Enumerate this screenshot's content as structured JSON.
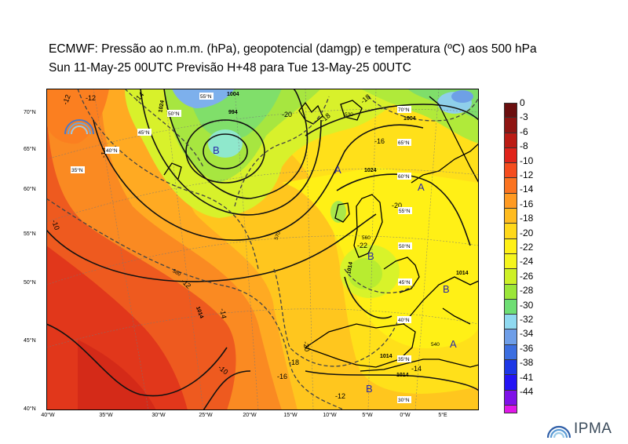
{
  "title_line1": "ECMWF:  Pressão ao n.m.m. (hPa), geopotencial (damgp) e temperatura (ºC) aos 500 hPa",
  "title_line2": "Sun 11-May-25 00UTC Previsão H+48 para Tue 13-May-25 00UTC",
  "lat_axis": [
    "70°N",
    "65°N",
    "60°N",
    "55°N",
    "50°N",
    "45°N",
    "40°N"
  ],
  "lon_axis": [
    "40°W",
    "35°W",
    "30°W",
    "25°W",
    "20°W",
    "15°W",
    "10°W",
    "5°W",
    "0°W",
    "5°E"
  ],
  "colorbar": {
    "labels": [
      "0",
      "-3",
      "-6",
      "-8",
      "-10",
      "-12",
      "-14",
      "-16",
      "-18",
      "-20",
      "-22",
      "-24",
      "-26",
      "-28",
      "-30",
      "-32",
      "-34",
      "-36",
      "-38",
      "-41",
      "-44"
    ],
    "colors": [
      "#6b0f0f",
      "#8f1512",
      "#bb1b14",
      "#e0231a",
      "#f54c1e",
      "#fb7320",
      "#ff9a22",
      "#ffbb1f",
      "#ffd81a",
      "#fff016",
      "#f5f51e",
      "#cdf027",
      "#9be639",
      "#6ede74",
      "#8fd9f0",
      "#6e9ee8",
      "#3c6ee0",
      "#1d37e6",
      "#2414f5",
      "#7f11e8",
      "#e017e9"
    ]
  },
  "pressure_systems": [
    {
      "letter": "B"
    },
    {
      "letter": "A"
    },
    {
      "letter": "A"
    },
    {
      "letter": "B"
    },
    {
      "letter": "B"
    },
    {
      "letter": "A"
    },
    {
      "letter": "B"
    }
  ],
  "isobar_labels": [
    "1004",
    "994",
    "1024",
    "1014",
    "1024",
    "1014",
    "1014",
    "1014",
    "1004",
    "1014"
  ],
  "temp_labels": [
    "-12",
    "-14",
    "-10",
    "-12",
    "-14",
    "-20",
    "-18",
    "-16",
    "-18",
    "-16",
    "-22",
    "-20",
    "-14",
    "-12",
    "-10",
    "-20",
    "-12",
    "-14",
    "-18"
  ],
  "geo_labels": [
    "580",
    "570",
    "560",
    "530",
    "540"
  ],
  "grid_labels_map": [
    "55°N",
    "50°N",
    "45°N",
    "40°N",
    "35°N",
    "70°N",
    "65°N",
    "60°N",
    "55°N",
    "50°N",
    "45°N",
    "40°N",
    "35°N",
    "30°N"
  ],
  "logo_text": "IPMA"
}
